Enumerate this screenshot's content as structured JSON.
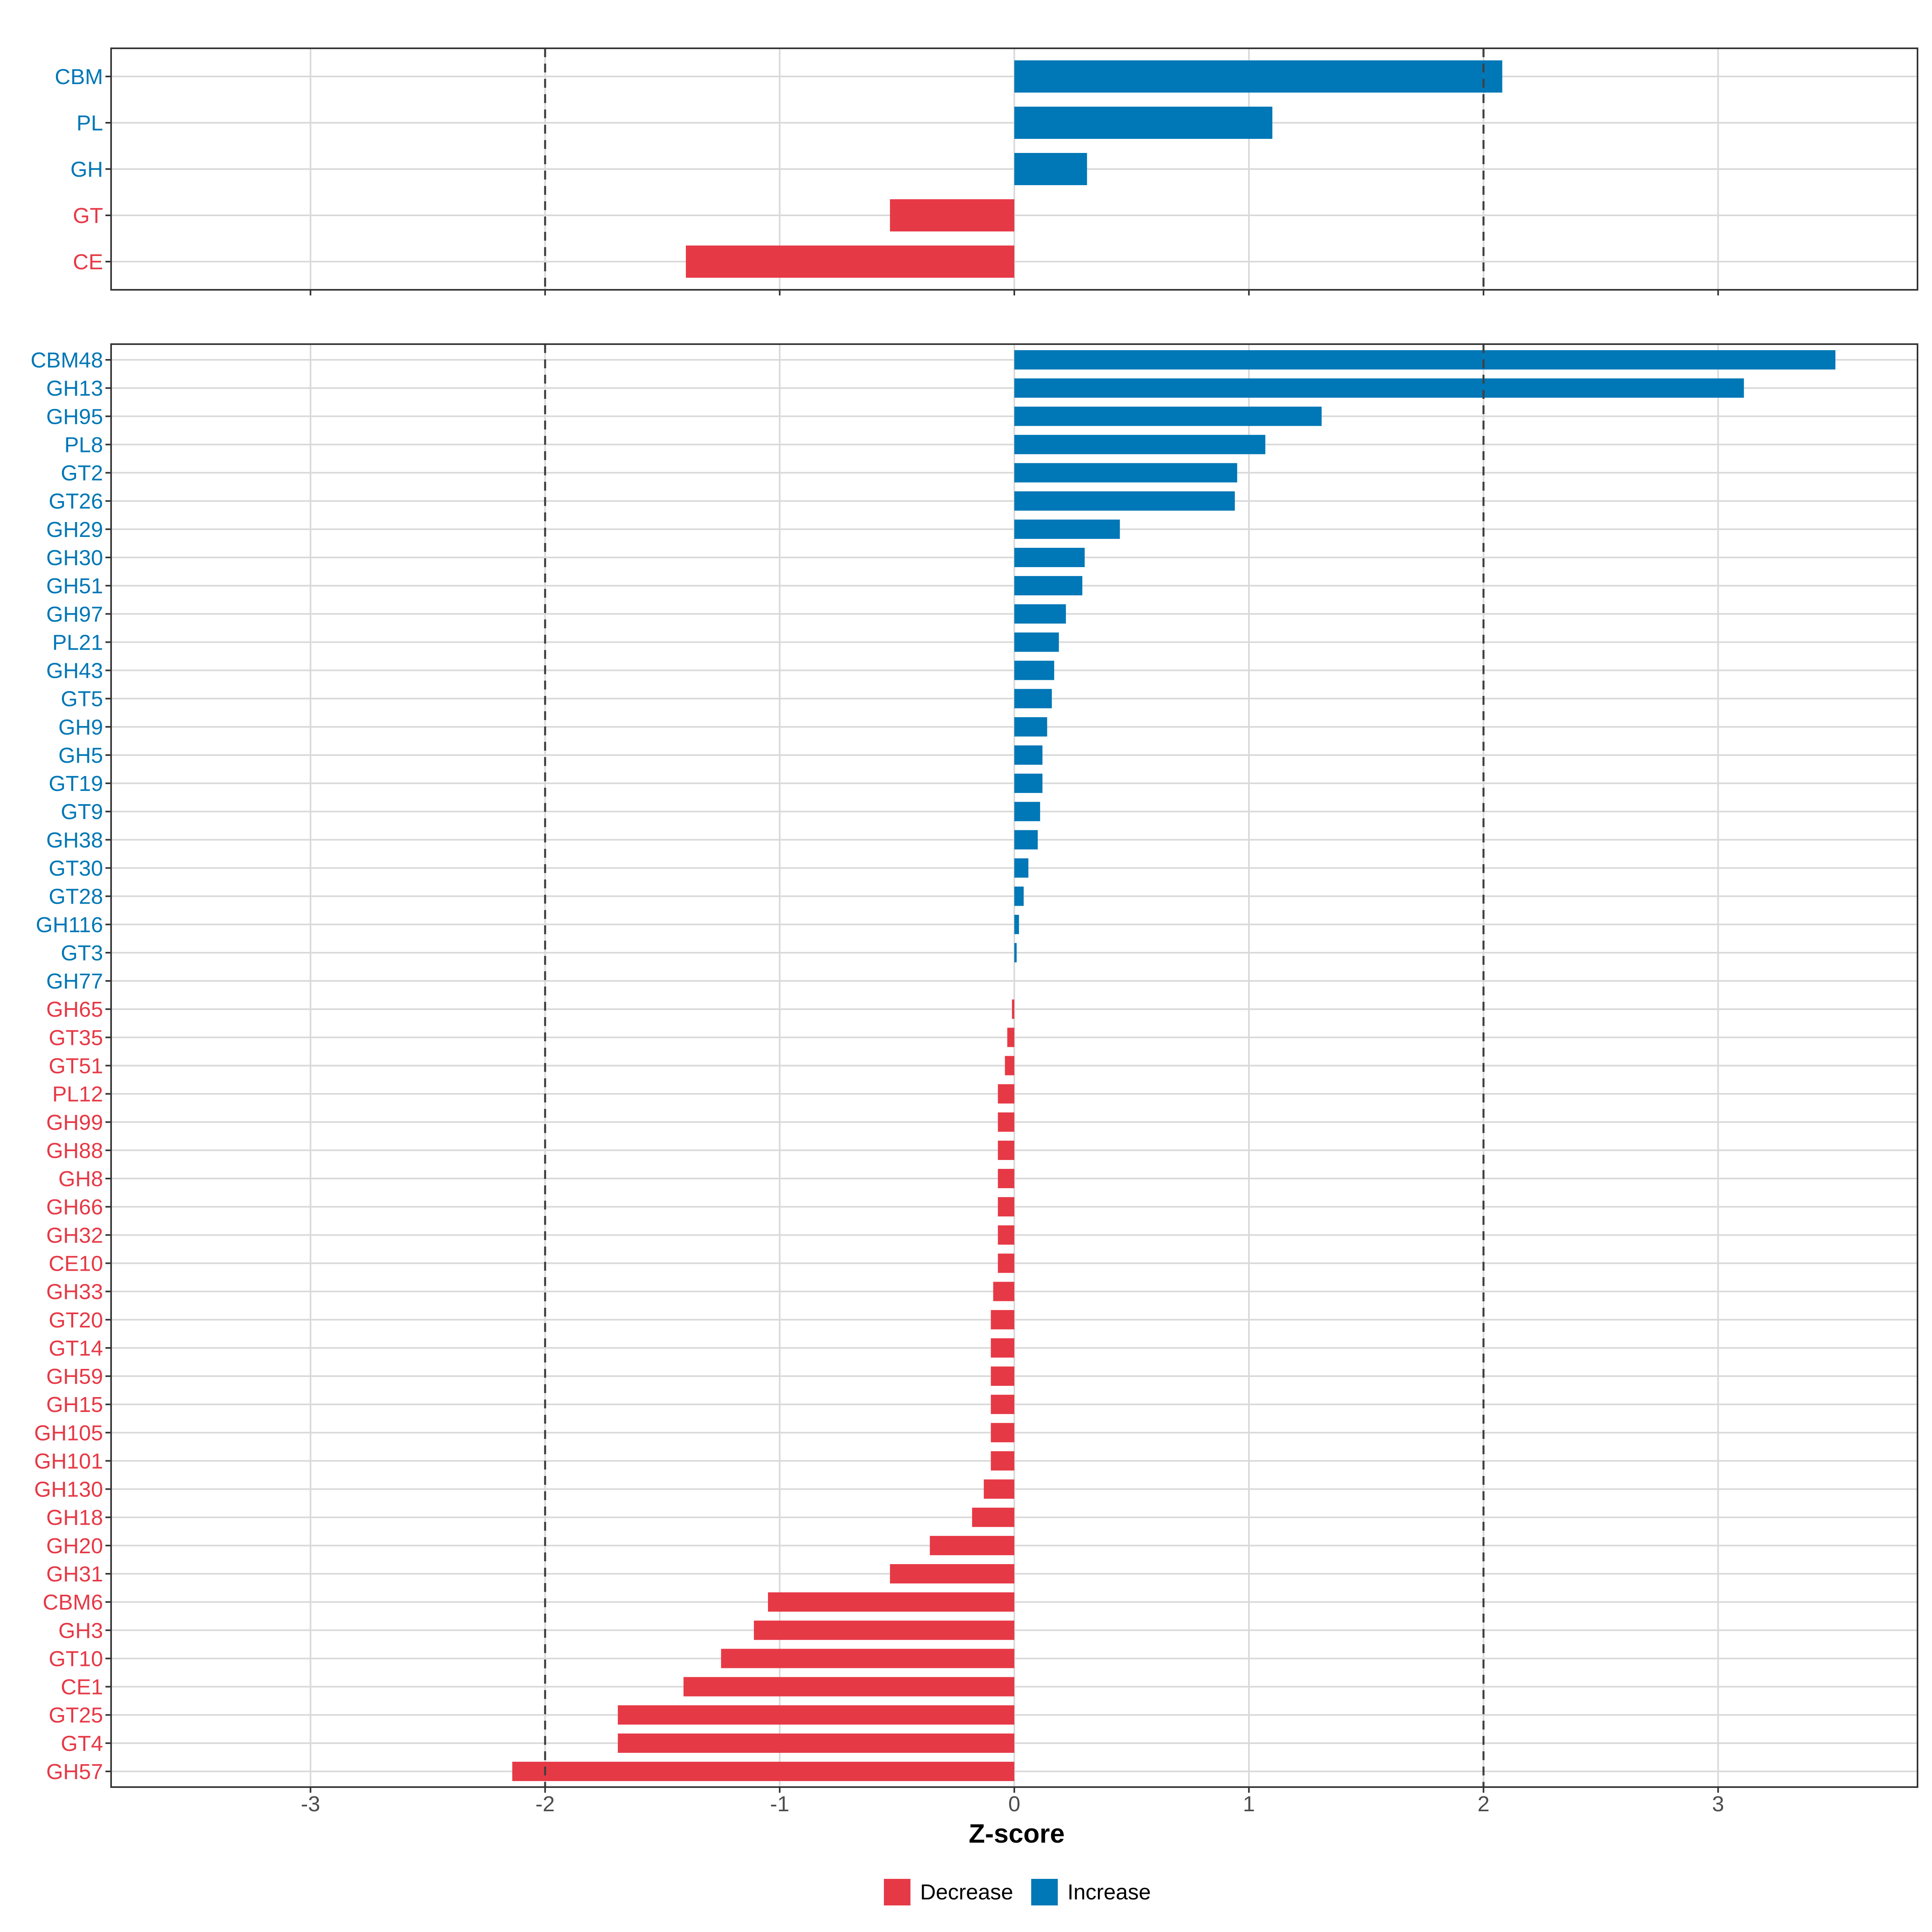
{
  "chart_data": [
    {
      "type": "bar",
      "orientation": "horizontal",
      "panel": "top",
      "categories": [
        "CBM",
        "PL",
        "GH",
        "GT",
        "CE"
      ],
      "values": [
        2.08,
        1.1,
        0.31,
        -0.53,
        -1.4
      ],
      "xlim": [
        -3.85,
        3.85
      ],
      "reference_lines": [
        -2,
        2
      ],
      "grid": true
    },
    {
      "type": "bar",
      "orientation": "horizontal",
      "panel": "bottom",
      "categories": [
        "CBM48",
        "GH13",
        "GH95",
        "PL8",
        "GT2",
        "GT26",
        "GH29",
        "GH30",
        "GH51",
        "GH97",
        "PL21",
        "GH43",
        "GT5",
        "GH9",
        "GH5",
        "GT19",
        "GT9",
        "GH38",
        "GT30",
        "GT28",
        "GH116",
        "GT3",
        "GH77",
        "GH65",
        "GT35",
        "GT51",
        "PL12",
        "GH99",
        "GH88",
        "GH8",
        "GH66",
        "GH32",
        "CE10",
        "GH33",
        "GT20",
        "GT14",
        "GH59",
        "GH15",
        "GH105",
        "GH101",
        "GH130",
        "GH18",
        "GH20",
        "GH31",
        "CBM6",
        "GH3",
        "GT10",
        "CE1",
        "GT25",
        "GT4",
        "GH57"
      ],
      "values": [
        3.5,
        3.11,
        1.31,
        1.07,
        0.95,
        0.94,
        0.45,
        0.3,
        0.29,
        0.22,
        0.19,
        0.17,
        0.16,
        0.14,
        0.12,
        0.12,
        0.11,
        0.1,
        0.06,
        0.04,
        0.02,
        0.01,
        0.0,
        -0.01,
        -0.03,
        -0.04,
        -0.07,
        -0.07,
        -0.07,
        -0.07,
        -0.07,
        -0.07,
        -0.07,
        -0.09,
        -0.1,
        -0.1,
        -0.1,
        -0.1,
        -0.1,
        -0.1,
        -0.13,
        -0.18,
        -0.36,
        -0.53,
        -1.05,
        -1.11,
        -1.25,
        -1.41,
        -1.69,
        -1.69,
        -2.14
      ],
      "xlim": [
        -3.85,
        3.85
      ],
      "xticks": [
        -3,
        -2,
        -1,
        0,
        1,
        2,
        3
      ],
      "xtick_labels": [
        "-3",
        "-2",
        "-1",
        "0",
        "1",
        "2",
        "3"
      ],
      "xlabel": "Z-score",
      "reference_lines": [
        -2,
        2
      ],
      "grid": true
    }
  ],
  "legend": {
    "position": "bottom",
    "items": [
      {
        "label": "Decrease",
        "color": "#e63946"
      },
      {
        "label": "Increase",
        "color": "#0077b6"
      }
    ]
  },
  "colors": {
    "decrease": "#e63946",
    "increase": "#0077b6",
    "grid": "#d9d9d9",
    "panel_border": "#333333",
    "reference_line": "#404040"
  }
}
